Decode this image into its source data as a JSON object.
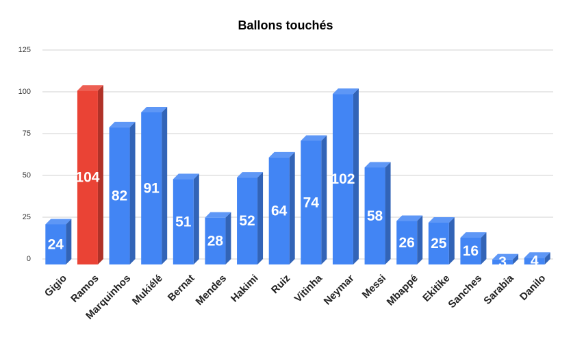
{
  "chart_data": {
    "type": "bar3d",
    "title": "Ballons touchés",
    "categories": [
      "Gigio",
      "Ramos",
      "Marquinhos",
      "Mukiélé",
      "Bernat",
      "Mendes",
      "Hakimi",
      "Ruiz",
      "Vitinha",
      "Neymar",
      "Messi",
      "Mbappé",
      "Ekitike",
      "Sanches",
      "Sarabia",
      "Danilo"
    ],
    "values": [
      24,
      104,
      82,
      91,
      51,
      28,
      52,
      64,
      74,
      102,
      58,
      26,
      25,
      16,
      3,
      4
    ],
    "colors": [
      "#4285f4",
      "#ea4335",
      "#4285f4",
      "#4285f4",
      "#4285f4",
      "#4285f4",
      "#4285f4",
      "#4285f4",
      "#4285f4",
      "#4285f4",
      "#4285f4",
      "#4285f4",
      "#4285f4",
      "#4285f4",
      "#4285f4",
      "#4285f4"
    ],
    "ylim": [
      0,
      125
    ],
    "yticks": [
      0,
      25,
      50,
      75,
      100,
      125
    ],
    "grid": true
  }
}
